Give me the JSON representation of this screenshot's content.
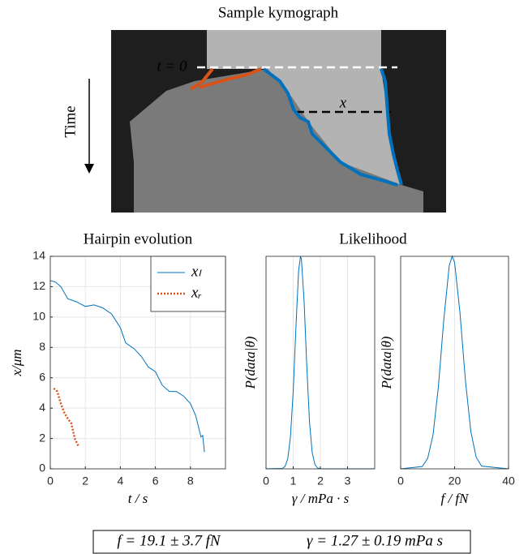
{
  "kymograph": {
    "title": "Sample kymograph",
    "time_label": "Time",
    "t0_label": "t = 0",
    "x_label": "x"
  },
  "chart_data": [
    {
      "type": "line",
      "title": "Hairpin evolution",
      "xlabel": "t / s",
      "ylabel": "x/μm",
      "xlim": [
        0,
        10
      ],
      "xticks": [
        0,
        2,
        4,
        6,
        8
      ],
      "ylim": [
        0,
        14
      ],
      "yticks": [
        0,
        2,
        4,
        6,
        8,
        10,
        12,
        14
      ],
      "grid": true,
      "legend": "top-right",
      "series": [
        {
          "name": "xₗ",
          "color": "#0072bd",
          "dash": "solid",
          "x": [
            0,
            0.3,
            0.6,
            1.0,
            1.5,
            2.0,
            2.5,
            3.0,
            3.5,
            4.0,
            4.3,
            4.8,
            5.2,
            5.6,
            6.0,
            6.4,
            6.8,
            7.2,
            7.6,
            8.0,
            8.3,
            8.6,
            8.7,
            8.8
          ],
          "values": [
            12.4,
            12.3,
            12.0,
            11.2,
            11.0,
            10.7,
            10.8,
            10.6,
            10.2,
            9.3,
            8.3,
            7.9,
            7.4,
            6.7,
            6.4,
            5.5,
            5.1,
            5.1,
            4.8,
            4.3,
            3.5,
            2.1,
            2.2,
            1.1
          ]
        },
        {
          "name": "xᵣ",
          "color": "#d95319",
          "dash": "dotted",
          "x": [
            0.2,
            0.4,
            0.6,
            0.8,
            1.0,
            1.2,
            1.4,
            1.6
          ],
          "values": [
            5.3,
            5.1,
            4.3,
            3.7,
            3.3,
            3.0,
            2.0,
            1.5
          ]
        }
      ]
    },
    {
      "type": "line",
      "title": "Likelihood",
      "xlabel": "γ / mPa · s",
      "ylabel": "P(data|θ)",
      "xlim": [
        0,
        4
      ],
      "xticks": [
        0,
        1,
        2,
        3
      ],
      "ylim": [
        0,
        1
      ],
      "grid": true,
      "series": [
        {
          "color": "#0072bd",
          "dash": "solid",
          "x": [
            0,
            0.6,
            0.7,
            0.8,
            0.9,
            1.0,
            1.1,
            1.2,
            1.27,
            1.3,
            1.4,
            1.5,
            1.6,
            1.7,
            1.8,
            1.9,
            2.0,
            4
          ],
          "values": [
            0,
            0.002,
            0.011,
            0.047,
            0.15,
            0.364,
            0.67,
            0.934,
            1,
            0.988,
            0.791,
            0.48,
            0.22,
            0.077,
            0.02,
            0.004,
            0,
            0
          ]
        }
      ]
    },
    {
      "type": "line",
      "xlabel": "f / fN",
      "ylabel": "P(data|θ)",
      "xlim": [
        0,
        40
      ],
      "xticks": [
        0,
        20,
        40
      ],
      "ylim": [
        0,
        1
      ],
      "grid": true,
      "series": [
        {
          "color": "#0072bd",
          "dash": "solid",
          "x": [
            0,
            8,
            10,
            12,
            14,
            16,
            18,
            19.1,
            20,
            22,
            24,
            26,
            28,
            30,
            40
          ],
          "values": [
            0,
            0.011,
            0.049,
            0.159,
            0.386,
            0.703,
            0.957,
            1,
            0.971,
            0.736,
            0.418,
            0.176,
            0.055,
            0.013,
            0
          ]
        }
      ]
    }
  ],
  "summary": [
    "f = 19.1 ± 3.7 fN",
    "γ = 1.27 ± 0.19 mPa s"
  ]
}
